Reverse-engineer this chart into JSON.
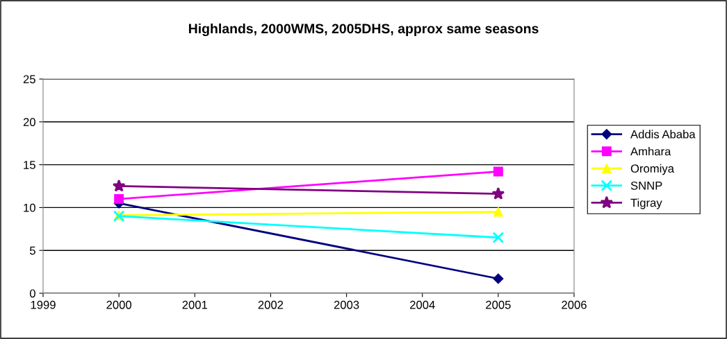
{
  "chart_data": {
    "type": "line",
    "title": "Highlands, 2000WMS, 2005DHS, approx same seasons",
    "x": [
      2000,
      2005
    ],
    "series": [
      {
        "name": "Addis Ababa",
        "color": "#000080",
        "marker": "diamond",
        "values": [
          10.5,
          1.7
        ]
      },
      {
        "name": "Amhara",
        "color": "#ff00ff",
        "marker": "square",
        "values": [
          11.0,
          14.2
        ]
      },
      {
        "name": "Oromiya",
        "color": "#ffff00",
        "marker": "triangle",
        "values": [
          9.1,
          9.5
        ]
      },
      {
        "name": "SNNP",
        "color": "#00ffff",
        "marker": "cross",
        "values": [
          9.0,
          6.5
        ]
      },
      {
        "name": "Tigray",
        "color": "#800080",
        "marker": "star",
        "values": [
          12.5,
          11.6
        ]
      }
    ],
    "xlim": [
      1999,
      2006
    ],
    "xticks": [
      1999,
      2000,
      2001,
      2002,
      2003,
      2004,
      2005,
      2006
    ],
    "ylim": [
      0,
      25
    ],
    "yticks": [
      0,
      5,
      10,
      15,
      20,
      25
    ],
    "grid": "y",
    "legend": "right"
  }
}
